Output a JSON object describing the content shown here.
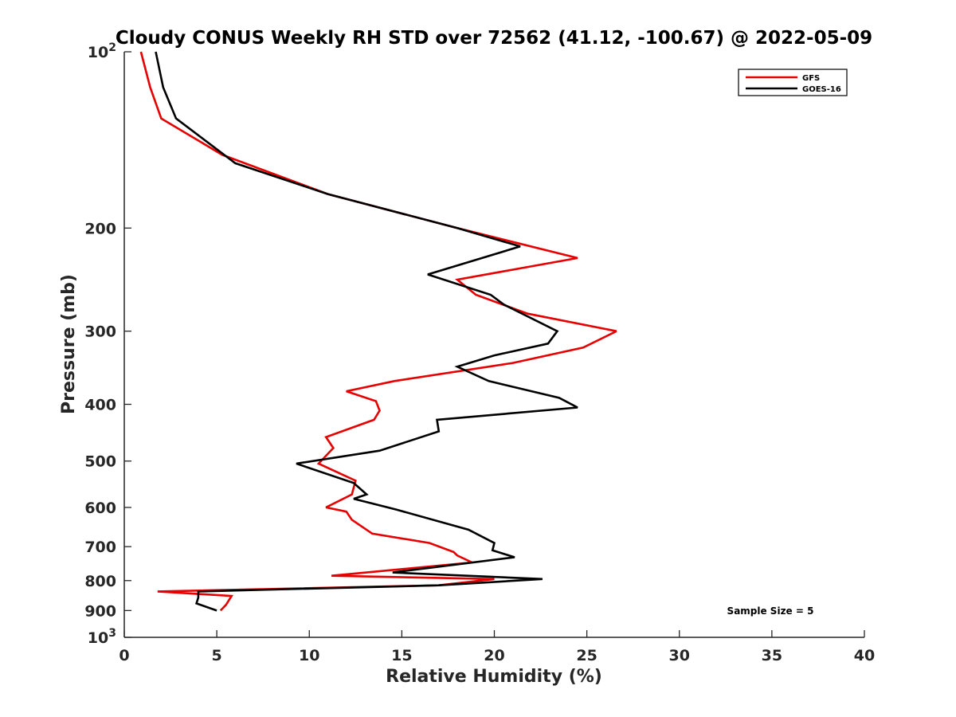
{
  "chart_data": {
    "type": "line",
    "title": "Cloudy CONUS Weekly RH STD over 72562 (41.12, -100.67) @ 2022-05-09",
    "xlabel": "Relative Humidity (%)",
    "ylabel": "Pressure (mb)",
    "xlim": [
      0,
      40
    ],
    "ylim": [
      100,
      1000
    ],
    "y_scale": "log",
    "y_reversed": true,
    "x_ticks": [
      "0",
      "5",
      "10",
      "15",
      "20",
      "25",
      "30",
      "35",
      "40"
    ],
    "y_ticks": [
      {
        "value": 100,
        "base": "10",
        "exp": "2"
      },
      {
        "value": 200,
        "label": "200"
      },
      {
        "value": 300,
        "label": "300"
      },
      {
        "value": 400,
        "label": "400"
      },
      {
        "value": 500,
        "label": "500"
      },
      {
        "value": 600,
        "label": "600"
      },
      {
        "value": 700,
        "label": "700"
      },
      {
        "value": 800,
        "label": "800"
      },
      {
        "value": 900,
        "label": "900"
      },
      {
        "value": 1000,
        "base": "10",
        "exp": "3"
      }
    ],
    "grid": false,
    "legend_position": "top-right",
    "annotation": "Sample Size = 5",
    "series": [
      {
        "name": "GFS",
        "color": "#e60000",
        "points": [
          [
            0.9,
            100
          ],
          [
            1.4,
            115
          ],
          [
            2.0,
            130
          ],
          [
            5.3,
            150
          ],
          [
            11.0,
            175
          ],
          [
            18.0,
            200
          ],
          [
            24.5,
            225
          ],
          [
            18.0,
            245
          ],
          [
            19.0,
            260
          ],
          [
            21.8,
            280
          ],
          [
            26.6,
            300
          ],
          [
            24.8,
            320
          ],
          [
            21.0,
            340
          ],
          [
            14.6,
            365
          ],
          [
            12.0,
            380
          ],
          [
            13.6,
            395
          ],
          [
            13.8,
            410
          ],
          [
            13.5,
            425
          ],
          [
            10.9,
            455
          ],
          [
            11.3,
            475
          ],
          [
            10.5,
            505
          ],
          [
            12.5,
            540
          ],
          [
            12.3,
            570
          ],
          [
            10.9,
            600
          ],
          [
            12.0,
            610
          ],
          [
            12.3,
            630
          ],
          [
            13.4,
            665
          ],
          [
            16.5,
            690
          ],
          [
            17.8,
            715
          ],
          [
            18.0,
            725
          ],
          [
            18.8,
            745
          ],
          [
            11.2,
            785
          ],
          [
            20.0,
            795
          ],
          [
            17.0,
            815
          ],
          [
            1.8,
            835
          ],
          [
            5.8,
            850
          ],
          [
            5.5,
            880
          ],
          [
            5.2,
            900
          ]
        ]
      },
      {
        "name": "GOES-16",
        "color": "#000000",
        "points": [
          [
            1.7,
            100
          ],
          [
            2.1,
            115
          ],
          [
            2.8,
            130
          ],
          [
            6.0,
            155
          ],
          [
            11.0,
            175
          ],
          [
            18.0,
            200
          ],
          [
            21.4,
            215
          ],
          [
            16.4,
            240
          ],
          [
            19.8,
            260
          ],
          [
            20.5,
            270
          ],
          [
            23.4,
            300
          ],
          [
            22.9,
            315
          ],
          [
            20.0,
            330
          ],
          [
            18.0,
            345
          ],
          [
            19.7,
            365
          ],
          [
            23.5,
            390
          ],
          [
            24.5,
            405
          ],
          [
            16.9,
            425
          ],
          [
            17.0,
            445
          ],
          [
            13.8,
            480
          ],
          [
            9.3,
            505
          ],
          [
            12.4,
            545
          ],
          [
            13.1,
            570
          ],
          [
            12.4,
            580
          ],
          [
            14.7,
            605
          ],
          [
            18.6,
            655
          ],
          [
            20.0,
            690
          ],
          [
            19.9,
            710
          ],
          [
            21.1,
            730
          ],
          [
            14.5,
            775
          ],
          [
            22.6,
            795
          ],
          [
            17.0,
            815
          ],
          [
            4.0,
            835
          ],
          [
            4.0,
            855
          ],
          [
            3.9,
            875
          ],
          [
            5.0,
            900
          ]
        ]
      }
    ]
  }
}
